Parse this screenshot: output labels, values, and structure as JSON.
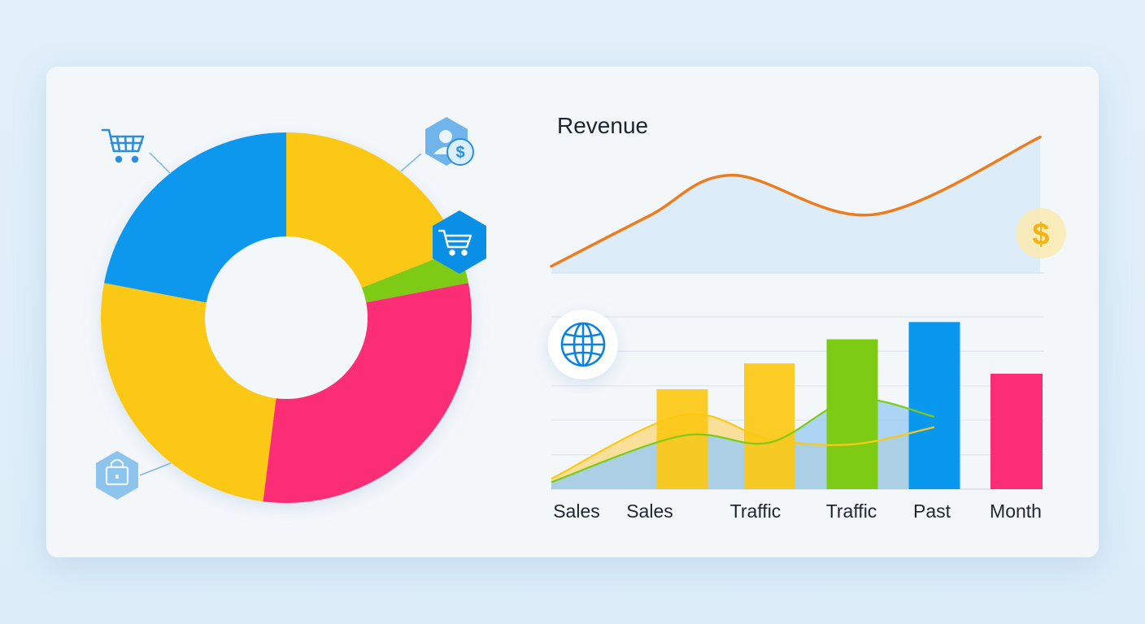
{
  "colors": {
    "blue": "#0998ee",
    "yellow": "#fcc813",
    "green": "#7ecb16",
    "pink": "#fb2d74",
    "orange": "#ec7c1c",
    "icon_blue": "#2b8fe0"
  },
  "chart_data": [
    {
      "type": "pie",
      "variant": "donut",
      "slices": [
        {
          "value": 19,
          "color": "#fcc813"
        },
        {
          "value": 3,
          "color": "#7ecb16"
        },
        {
          "value": 30,
          "color": "#fb2d74"
        },
        {
          "value": 26,
          "color": "#fcc813"
        },
        {
          "value": 22,
          "color": "#0998ee"
        }
      ],
      "icons": [
        "cart-icon",
        "customer-dollar-icon",
        "cart-icon",
        "shopping-bag-icon"
      ]
    },
    {
      "type": "line",
      "title": "Revenue",
      "series": [
        {
          "color": "#ec7c1c",
          "values": [
            {
              "x": 0,
              "y": 5
            },
            {
              "x": 0.2,
              "y": 42
            },
            {
              "x": 0.37,
              "y": 72
            },
            {
              "x": 0.66,
              "y": 43
            },
            {
              "x": 1,
              "y": 100
            }
          ]
        }
      ],
      "ylim": [
        0,
        110
      ],
      "icon": "dollar-coin-icon"
    },
    {
      "type": "bar",
      "categories": [
        "Sales",
        "Sales",
        "Traffic",
        "Traffic",
        "Past",
        "Month"
      ],
      "values": [
        0,
        58,
        73,
        87,
        97,
        67
      ],
      "bar_colors": [
        "#9ecef3",
        "#fcc813",
        "#fcc813",
        "#7ecb16",
        "#0998ee",
        "#fb2d74"
      ],
      "ylim": [
        0,
        100
      ],
      "area_series": [
        {
          "color": "#fcc813",
          "values": [
            6,
            43,
            29,
            26,
            36,
            39
          ]
        },
        {
          "color": "#7ecb16",
          "values": [
            4,
            31,
            27,
            52,
            42,
            58
          ]
        }
      ],
      "icon": "globe-icon"
    }
  ]
}
